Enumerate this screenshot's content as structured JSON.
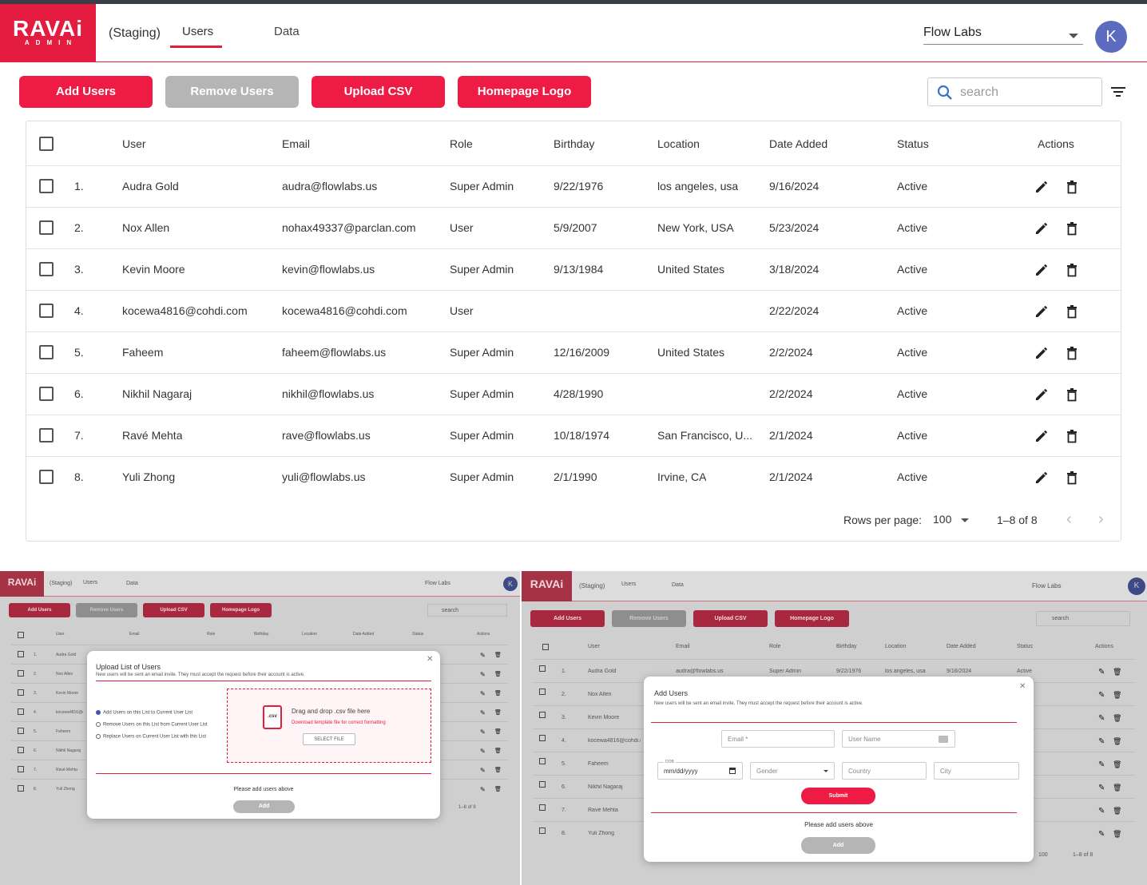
{
  "header": {
    "logo_top": "RAVAi",
    "logo_bottom": "ADMIN",
    "environment": "(Staging)",
    "tabs": [
      {
        "label": "Users",
        "active": true
      },
      {
        "label": "Data",
        "active": false
      }
    ],
    "org_select": "Flow Labs",
    "avatar_initial": "K"
  },
  "toolbar": {
    "add_users": "Add Users",
    "remove_users": "Remove Users",
    "upload_csv": "Upload CSV",
    "homepage_logo": "Homepage Logo",
    "search_placeholder": "search"
  },
  "table": {
    "columns": [
      "User",
      "Email",
      "Role",
      "Birthday",
      "Location",
      "Date Added",
      "Status",
      "Actions"
    ],
    "rows": [
      {
        "num": "1.",
        "user": "Audra Gold",
        "email": "audra@flowlabs.us",
        "role": "Super Admin",
        "birthday": "9/22/1976",
        "location": "los angeles, usa",
        "date_added": "9/16/2024",
        "status": "Active"
      },
      {
        "num": "2.",
        "user": "Nox Allen",
        "email": "nohax49337@parclan.com",
        "role": "User",
        "birthday": "5/9/2007",
        "location": "New York, USA",
        "date_added": "5/23/2024",
        "status": "Active"
      },
      {
        "num": "3.",
        "user": "Kevin Moore",
        "email": "kevin@flowlabs.us",
        "role": "Super Admin",
        "birthday": "9/13/1984",
        "location": "United States",
        "date_added": "3/18/2024",
        "status": "Active"
      },
      {
        "num": "4.",
        "user": "kocewa4816@cohdi.com",
        "email": "kocewa4816@cohdi.com",
        "role": "User",
        "birthday": "",
        "location": "",
        "date_added": "2/22/2024",
        "status": "Active"
      },
      {
        "num": "5.",
        "user": "Faheem",
        "email": "faheem@flowlabs.us",
        "role": "Super Admin",
        "birthday": "12/16/2009",
        "location": "United States",
        "date_added": "2/2/2024",
        "status": "Active"
      },
      {
        "num": "6.",
        "user": "Nikhil Nagaraj",
        "email": "nikhil@flowlabs.us",
        "role": "Super Admin",
        "birthday": "4/28/1990",
        "location": "",
        "date_added": "2/2/2024",
        "status": "Active"
      },
      {
        "num": "7.",
        "user": "Ravé Mehta",
        "email": "rave@flowlabs.us",
        "role": "Super Admin",
        "birthday": "10/18/1974",
        "location": "San Francisco, U...",
        "date_added": "2/1/2024",
        "status": "Active"
      },
      {
        "num": "8.",
        "user": "Yuli Zhong",
        "email": "yuli@flowlabs.us",
        "role": "Super Admin",
        "birthday": "2/1/1990",
        "location": "Irvine, CA",
        "date_added": "2/1/2024",
        "status": "Active"
      }
    ]
  },
  "pagination": {
    "rows_per_page_label": "Rows per page:",
    "rows_per_page": "100",
    "range": "1–8 of 8"
  },
  "upload_modal": {
    "title": "Upload List of Users",
    "subtitle": "New users will be sent an email invite. They must accept the request before their account is active.",
    "options": [
      "Add Users on this List to Current User List",
      "Remove Users on this List from Current User List",
      "Replace Users on Current User List with this List"
    ],
    "drop_text": "Drag and drop .csv file here",
    "template_link": "Download template file for correct formatting",
    "select_file": "SELECT FILE",
    "csv_label": ".csv",
    "empty_msg": "Please add users above",
    "add": "Add",
    "pagination_range": "1–8 of 8"
  },
  "add_modal": {
    "title": "Add Users",
    "subtitle": "New users will be sent an email invite. They must accept the request before their account is active.",
    "email_ph": "Email *",
    "username_ph": "User Name",
    "dob_label": "DOB",
    "dob_ph": "mm/dd/yyyy",
    "gender_ph": "Gender",
    "country_ph": "Country",
    "city_ph": "City",
    "submit": "Submit",
    "empty_msg": "Please add users above",
    "add": "Add",
    "rows_per_page": "100",
    "pagination_range": "1–8 of 8"
  },
  "colors": {
    "accent": "#ee1b45",
    "disabled": "#b5b5b5",
    "avatar": "#5c6bc0"
  }
}
